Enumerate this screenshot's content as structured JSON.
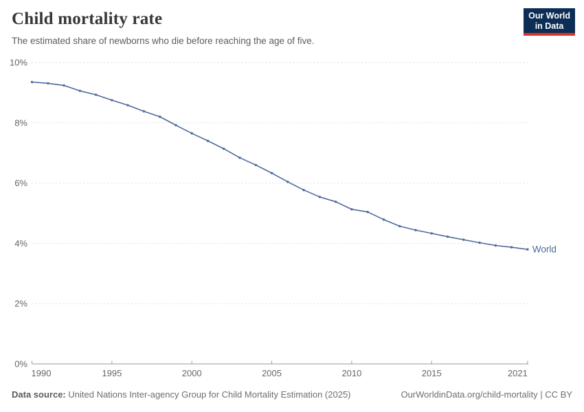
{
  "header": {
    "title": "Child mortality rate",
    "subtitle": "The estimated share of newborns who die before reaching the age of five.",
    "logo": {
      "line1": "Our World",
      "line2": "in Data"
    }
  },
  "chart_data": {
    "type": "line",
    "title": "Child mortality rate",
    "subtitle": "The estimated share of newborns who die before reaching the age of five.",
    "xlabel": "",
    "ylabel": "",
    "xlim": [
      1990,
      2021
    ],
    "ylim": [
      0,
      10
    ],
    "grid": "horizontal-dashed",
    "legend_position": "end-of-line",
    "x_ticks": [
      {
        "value": 1990,
        "label": "1990"
      },
      {
        "value": 1995,
        "label": "1995"
      },
      {
        "value": 2000,
        "label": "2000"
      },
      {
        "value": 2005,
        "label": "2005"
      },
      {
        "value": 2010,
        "label": "2010"
      },
      {
        "value": 2015,
        "label": "2015"
      },
      {
        "value": 2021,
        "label": "2021"
      }
    ],
    "y_ticks": [
      {
        "value": 0,
        "label": "0%"
      },
      {
        "value": 2,
        "label": "2%"
      },
      {
        "value": 4,
        "label": "4%"
      },
      {
        "value": 6,
        "label": "6%"
      },
      {
        "value": 8,
        "label": "8%"
      },
      {
        "value": 10,
        "label": "10%"
      }
    ],
    "series": [
      {
        "name": "World",
        "color": "#4C6A9C",
        "unit": "%",
        "x": [
          1990,
          1991,
          1992,
          1993,
          1994,
          1995,
          1996,
          1997,
          1998,
          1999,
          2000,
          2001,
          2002,
          2003,
          2004,
          2005,
          2006,
          2007,
          2008,
          2009,
          2010,
          2011,
          2012,
          2013,
          2014,
          2015,
          2016,
          2017,
          2018,
          2019,
          2020,
          2021
        ],
        "values": [
          9.35,
          9.31,
          9.24,
          9.06,
          8.93,
          8.75,
          8.58,
          8.38,
          8.2,
          7.92,
          7.65,
          7.4,
          7.14,
          6.84,
          6.6,
          6.33,
          6.04,
          5.77,
          5.54,
          5.38,
          5.13,
          5.04,
          4.79,
          4.57,
          4.44,
          4.33,
          4.22,
          4.12,
          4.02,
          3.93,
          3.87,
          3.8
        ]
      }
    ]
  },
  "footer": {
    "datasource_label": "Data source:",
    "datasource": "United Nations Inter-agency Group for Child Mortality Estimation (2025)",
    "url": "OurWorldinData.org/child-mortality",
    "separator": "|",
    "license": "CC BY"
  },
  "colors": {
    "line": "#4C6A9C",
    "logo_bg": "#0C2D56",
    "logo_accent": "#DC3328",
    "grid": "#DDDDDD",
    "axis": "#999999",
    "tick_text": "#666666",
    "title_text": "#383636",
    "subtitle_text": "#5B5B5B",
    "footer_text": "#6E6E6E"
  }
}
